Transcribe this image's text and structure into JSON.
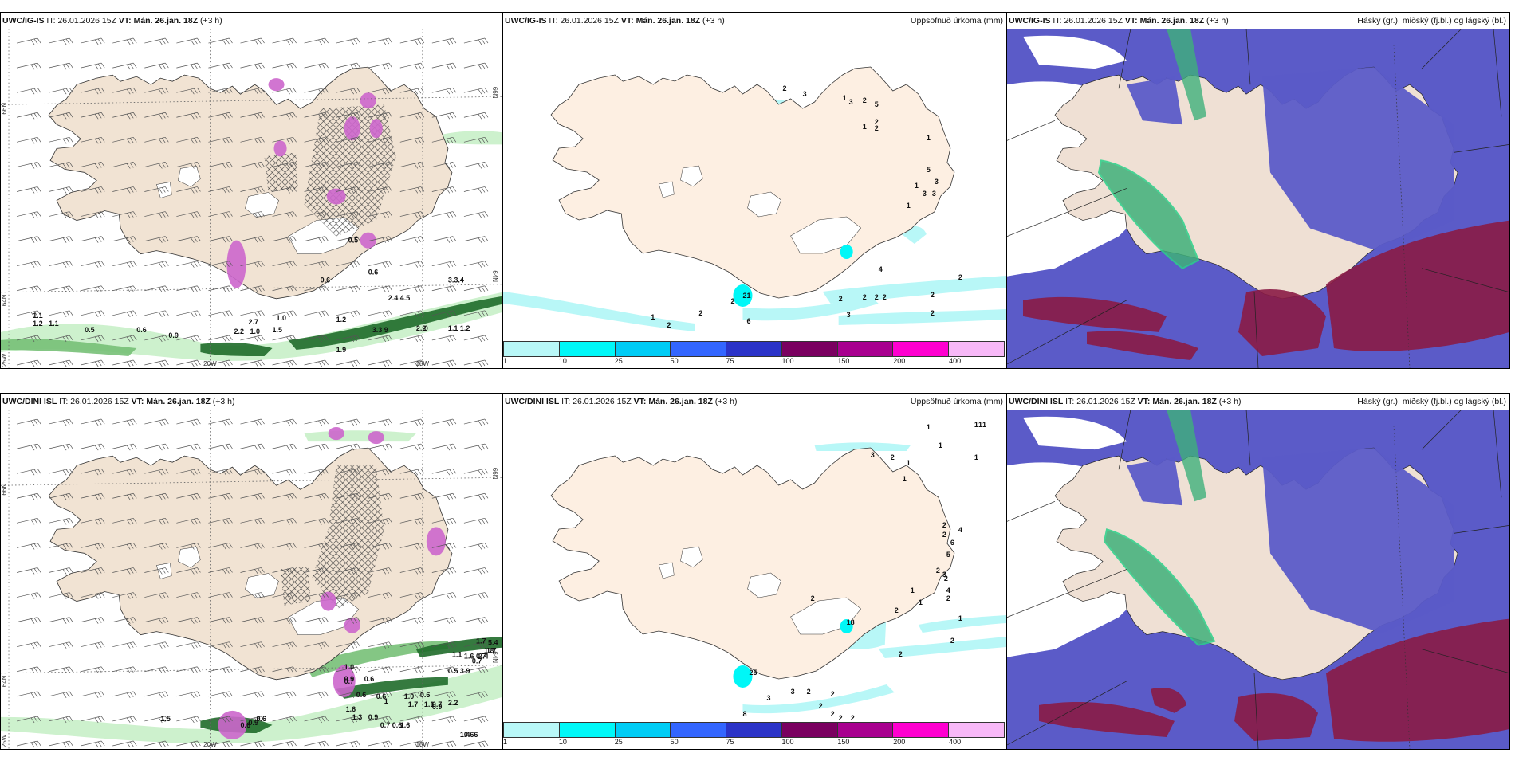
{
  "panels": [
    {
      "id": "top-left",
      "model": "UWC/IG-IS",
      "it_label": "IT:",
      "it_value": "26.01.2026 15Z",
      "vt_label": "VT:",
      "vt_value": "Mán. 26.jan. 18Z",
      "lead": "(+3 h)",
      "right_title": "",
      "type": "wind-precip",
      "axis_labels": {
        "lat_66": "66N",
        "lat_64": "64N",
        "lon_25": "25W",
        "lon_20": "20W",
        "lon_15": "15W"
      },
      "values": [
        "1.1",
        "1.2",
        "1.1",
        "0.5",
        "0.6",
        "0.9",
        "2.2",
        "1.0",
        "1.5",
        "2.7",
        "1.0",
        "1.2",
        "3.3",
        "9",
        "2.2",
        "0",
        "1.1",
        "1.2",
        "2.4",
        "4.5",
        "1.9",
        "0.6",
        "0.6",
        "0.5",
        "3.3.4"
      ]
    },
    {
      "id": "top-middle",
      "model": "UWC/IG-IS",
      "it_label": "IT:",
      "it_value": "26.01.2026 15Z",
      "vt_label": "VT:",
      "vt_value": "Mán. 26.jan. 18Z",
      "lead": "(+3 h)",
      "right_title": "Uppsöfnuð úrkoma (mm)",
      "type": "accum-precip",
      "values": [
        "2",
        "3",
        "3",
        "2",
        "5",
        "1",
        "2",
        "2",
        "1",
        "1",
        "5",
        "3",
        "1",
        "3",
        "3",
        "1",
        "4",
        "2",
        "2",
        "1",
        "2",
        "21",
        "6",
        "2",
        "2",
        "2",
        "2",
        "2",
        "2",
        "3",
        "2"
      ]
    },
    {
      "id": "top-right",
      "model": "UWC/IG-IS",
      "it_label": "IT:",
      "it_value": "26.01.2026 15Z",
      "vt_label": "VT:",
      "vt_value": "Mán. 26.jan. 18Z",
      "lead": "(+3 h)",
      "right_title": "Háský (gr.), miðský (fj.bl.) og lágský (bl.)",
      "type": "clouds"
    },
    {
      "id": "bottom-left",
      "model": "UWC/DINI ISL",
      "it_label": "IT:",
      "it_value": "26.01.2026 15Z",
      "vt_label": "VT:",
      "vt_value": "Mán. 26.jan. 18Z",
      "lead": "(+3 h)",
      "right_title": "",
      "type": "wind-precip",
      "axis_labels": {
        "lat_66": "66N",
        "lat_64": "64N",
        "lon_25": "25W",
        "lon_20": "20W",
        "lon_15": "15W"
      },
      "values": [
        "0.7",
        "1.1",
        "1.0",
        "0.9",
        "0.7",
        "0.6",
        "0.6",
        "0.6",
        "1.0",
        "0.6",
        "0.9",
        "2.2",
        "1",
        "1.7",
        "1.1",
        "0.7",
        "1.6",
        "1.3",
        "0.9",
        "0.7",
        "0.6",
        "1.6",
        "1.4",
        "1.5",
        "0.9",
        "0.6",
        "0.6",
        "0.5",
        "3.9",
        "1.6",
        "2.4",
        "1.8",
        "1.7",
        "0.7",
        "1.7",
        "5.4",
        "0.66"
      ]
    },
    {
      "id": "bottom-middle",
      "model": "UWC/DINI ISL",
      "it_label": "IT:",
      "it_value": "26.01.2026 15Z",
      "vt_label": "VT:",
      "vt_value": "Mán. 26.jan. 18Z",
      "lead": "(+3 h)",
      "right_title": "Uppsöfnuð úrkoma (mm)",
      "type": "accum-precip",
      "values": [
        "1",
        "1",
        "1",
        "1",
        "3",
        "1",
        "2",
        "1",
        "1",
        "1",
        "2",
        "2",
        "4",
        "6",
        "5",
        "2",
        "1",
        "3",
        "2",
        "1",
        "4",
        "2",
        "2",
        "1",
        "18",
        "2",
        "2",
        "25",
        "2",
        "3",
        "3",
        "2",
        "2",
        "2",
        "2",
        "8",
        "2",
        "2"
      ]
    },
    {
      "id": "bottom-right",
      "model": "UWC/DINI ISL",
      "it_label": "IT:",
      "it_value": "26.01.2026 15Z",
      "vt_label": "VT:",
      "vt_value": "Mán. 26.jan. 18Z",
      "lead": "(+3 h)",
      "right_title": "Háský (gr.), miðský (fj.bl.) og lágský (bl.)",
      "type": "clouds"
    }
  ],
  "colorbar": {
    "ticks": [
      "1",
      "10",
      "25",
      "50",
      "75",
      "100",
      "150",
      "200",
      "400"
    ],
    "colors": [
      "#b8f7f7",
      "#00f7f7",
      "#00ccf5",
      "#3366ff",
      "#2b33c8",
      "#7a0060",
      "#a8008f",
      "#ff00d0",
      "#f7b8f7"
    ]
  },
  "colors": {
    "land": "#f1e3d3",
    "land_accum": "#fdefe2",
    "coast": "#333333",
    "green_light": "#c8f0c8",
    "green_mid": "#77c077",
    "green_dark": "#1f6b2a",
    "purple": "#cc66cc",
    "cloud_high": "#3fb07a",
    "cloud_mid": "#5b5bc8",
    "cloud_low": "#8a1b45",
    "accum_light": "#b8f7f7"
  }
}
